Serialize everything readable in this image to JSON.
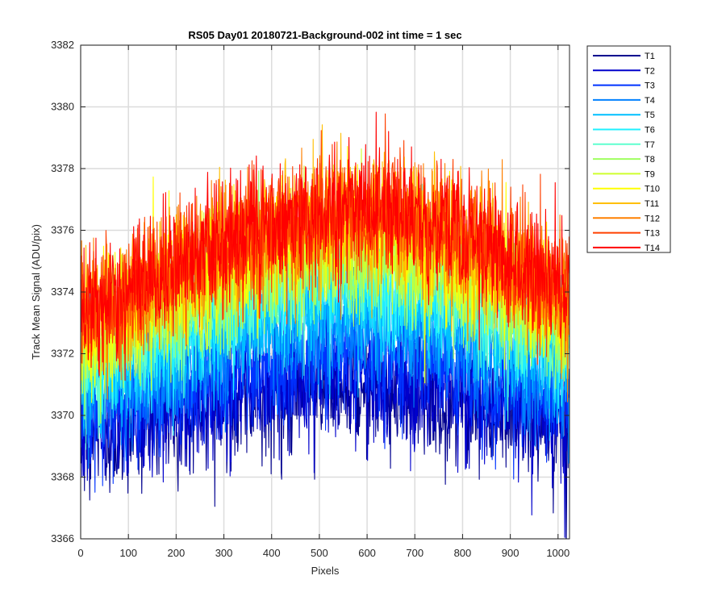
{
  "chart_data": {
    "type": "line",
    "title": "RS05 Day01 20180721-Background-002 int time = 1 sec",
    "xlabel": "Pixels",
    "ylabel": "Track Mean Signal (ADU/pix)",
    "xlim": [
      0,
      1024
    ],
    "ylim": [
      3366,
      3382
    ],
    "xticks": [
      0,
      100,
      200,
      300,
      400,
      500,
      600,
      700,
      800,
      900,
      1000
    ],
    "yticks": [
      3366,
      3368,
      3370,
      3372,
      3374,
      3376,
      3378,
      3380,
      3382
    ],
    "xtick_labels": [
      "0",
      "100",
      "200",
      "300",
      "400",
      "500",
      "600",
      "700",
      "800",
      "900",
      "1000"
    ],
    "ytick_labels": [
      "3366",
      "3368",
      "3370",
      "3372",
      "3374",
      "3376",
      "3378",
      "3380",
      "3382"
    ],
    "grid": true,
    "legend_position": "outside-top-right",
    "n_points": 1024,
    "series": [
      {
        "name": "T1",
        "color": "#00008f",
        "profile": {
          "pixels": [
            0,
            128,
            256,
            384,
            512,
            640,
            768,
            896,
            1024
          ],
          "mean": [
            3369.4,
            3369.8,
            3370.3,
            3370.7,
            3370.9,
            3370.9,
            3370.6,
            3370.1,
            3369.5
          ],
          "noise_std": 1.0
        }
      },
      {
        "name": "T2",
        "color": "#0000cc",
        "profile": {
          "pixels": [
            0,
            128,
            256,
            384,
            512,
            640,
            768,
            896,
            1024
          ],
          "mean": [
            3369.6,
            3370.0,
            3370.5,
            3370.9,
            3371.1,
            3371.1,
            3370.8,
            3370.3,
            3369.7
          ],
          "noise_std": 1.0
        }
      },
      {
        "name": "T3",
        "color": "#0033ff",
        "profile": {
          "pixels": [
            0,
            128,
            256,
            384,
            512,
            640,
            768,
            896,
            1024
          ],
          "mean": [
            3370.1,
            3370.6,
            3371.2,
            3371.7,
            3372.0,
            3372.0,
            3371.6,
            3371.0,
            3370.3
          ],
          "noise_std": 1.0
        }
      },
      {
        "name": "T4",
        "color": "#0080ff",
        "profile": {
          "pixels": [
            0,
            128,
            256,
            384,
            512,
            640,
            768,
            896,
            1024
          ],
          "mean": [
            3370.6,
            3371.2,
            3371.9,
            3372.5,
            3372.9,
            3372.9,
            3372.4,
            3371.7,
            3370.9
          ],
          "noise_std": 1.0
        }
      },
      {
        "name": "T5",
        "color": "#00bfff",
        "profile": {
          "pixels": [
            0,
            128,
            256,
            384,
            512,
            640,
            768,
            896,
            1024
          ],
          "mean": [
            3371.1,
            3371.8,
            3372.6,
            3373.3,
            3373.7,
            3373.7,
            3373.2,
            3372.4,
            3371.5
          ],
          "noise_std": 1.0
        }
      },
      {
        "name": "T6",
        "color": "#1ff0ff",
        "profile": {
          "pixels": [
            0,
            128,
            256,
            384,
            512,
            640,
            768,
            896,
            1024
          ],
          "mean": [
            3371.5,
            3372.3,
            3373.1,
            3373.9,
            3374.3,
            3374.3,
            3373.8,
            3373.0,
            3372.0
          ],
          "noise_std": 1.0
        }
      },
      {
        "name": "T7",
        "color": "#5fffcf",
        "profile": {
          "pixels": [
            0,
            128,
            256,
            384,
            512,
            640,
            768,
            896,
            1024
          ],
          "mean": [
            3371.8,
            3372.6,
            3373.5,
            3374.3,
            3374.8,
            3374.8,
            3374.2,
            3373.3,
            3372.3
          ],
          "noise_std": 1.0
        }
      },
      {
        "name": "T8",
        "color": "#9fff60",
        "profile": {
          "pixels": [
            0,
            128,
            256,
            384,
            512,
            640,
            768,
            896,
            1024
          ],
          "mean": [
            3372.1,
            3372.9,
            3373.8,
            3374.7,
            3375.1,
            3375.1,
            3374.6,
            3373.7,
            3372.6
          ],
          "noise_std": 1.0
        }
      },
      {
        "name": "T9",
        "color": "#cfff2f",
        "profile": {
          "pixels": [
            0,
            128,
            256,
            384,
            512,
            640,
            768,
            896,
            1024
          ],
          "mean": [
            3372.4,
            3373.3,
            3374.2,
            3375.1,
            3375.6,
            3375.6,
            3375.0,
            3374.1,
            3373.0
          ],
          "noise_std": 1.0
        }
      },
      {
        "name": "T10",
        "color": "#ffff00",
        "profile": {
          "pixels": [
            0,
            128,
            256,
            384,
            512,
            640,
            768,
            896,
            1024
          ],
          "mean": [
            3372.7,
            3373.6,
            3374.6,
            3375.5,
            3376.0,
            3376.0,
            3375.4,
            3374.4,
            3373.3
          ],
          "noise_std": 1.0
        }
      },
      {
        "name": "T11",
        "color": "#ffbf00",
        "profile": {
          "pixels": [
            0,
            128,
            256,
            384,
            512,
            640,
            768,
            896,
            1024
          ],
          "mean": [
            3373.0,
            3373.9,
            3374.9,
            3375.8,
            3376.3,
            3376.3,
            3375.7,
            3374.7,
            3373.6
          ],
          "noise_std": 1.0
        }
      },
      {
        "name": "T12",
        "color": "#ff8000",
        "profile": {
          "pixels": [
            0,
            128,
            256,
            384,
            512,
            640,
            768,
            896,
            1024
          ],
          "mean": [
            3373.2,
            3374.1,
            3375.1,
            3376.0,
            3376.5,
            3376.5,
            3375.9,
            3374.9,
            3373.8
          ],
          "noise_std": 1.0
        }
      },
      {
        "name": "T13",
        "color": "#ff4000",
        "profile": {
          "pixels": [
            0,
            128,
            256,
            384,
            512,
            640,
            768,
            896,
            1024
          ],
          "mean": [
            3373.3,
            3374.2,
            3375.2,
            3376.1,
            3376.6,
            3376.6,
            3376.0,
            3375.0,
            3373.9
          ],
          "noise_std": 1.0
        }
      },
      {
        "name": "T14",
        "color": "#ff0000",
        "profile": {
          "pixels": [
            0,
            128,
            256,
            384,
            512,
            640,
            768,
            896,
            1024
          ],
          "mean": [
            3373.4,
            3374.3,
            3375.3,
            3376.2,
            3376.7,
            3376.7,
            3376.1,
            3375.1,
            3374.0
          ],
          "noise_std": 1.0
        }
      }
    ]
  }
}
